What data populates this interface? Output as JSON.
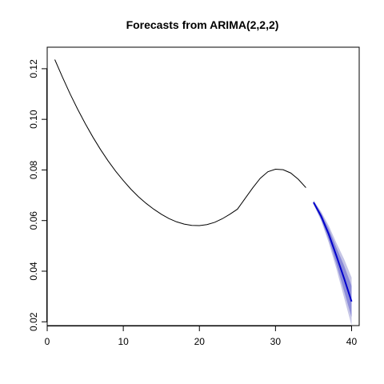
{
  "chart_data": {
    "type": "line",
    "title": "Forecasts from ARIMA(2,2,2)",
    "xlabel": "",
    "ylabel": "",
    "xlim": [
      0,
      41
    ],
    "ylim": [
      0.0185,
      0.1285
    ],
    "x_ticks": [
      0,
      10,
      20,
      30,
      40
    ],
    "x_tick_labels": [
      "0",
      "10",
      "20",
      "30",
      "40"
    ],
    "y_ticks": [
      0.02,
      0.04,
      0.06,
      0.08,
      0.1,
      0.12
    ],
    "y_tick_labels": [
      "0.02",
      "0.04",
      "0.06",
      "0.08",
      "0.10",
      "0.12"
    ],
    "grid": false,
    "legend": "none",
    "series": [
      {
        "role": "observed",
        "color": "#000000",
        "x": [
          1,
          2,
          3,
          4,
          5,
          6,
          7,
          8,
          9,
          10,
          11,
          12,
          13,
          14,
          15,
          16,
          17,
          18,
          19,
          20,
          21,
          22,
          23,
          24,
          25,
          26,
          27,
          28,
          29,
          30,
          31,
          32,
          33,
          34
        ],
        "y": [
          0.1236,
          0.1167,
          0.1101,
          0.104,
          0.0983,
          0.093,
          0.0881,
          0.0836,
          0.0795,
          0.0758,
          0.0724,
          0.0694,
          0.0668,
          0.0645,
          0.0625,
          0.0608,
          0.0595,
          0.0586,
          0.0581,
          0.058,
          0.0584,
          0.0593,
          0.0607,
          0.0625,
          0.0645,
          0.0687,
          0.0729,
          0.0767,
          0.0793,
          0.0803,
          0.0801,
          0.0788,
          0.0763,
          0.073
        ]
      },
      {
        "role": "forecast",
        "color": "#0000cc",
        "x": [
          35,
          36,
          37,
          38,
          39,
          40
        ],
        "y": [
          0.0672,
          0.0617,
          0.0546,
          0.0461,
          0.0373,
          0.028
        ],
        "lower80": [
          0.0667,
          0.0605,
          0.0524,
          0.0428,
          0.0323,
          0.0218
        ],
        "upper80": [
          0.0677,
          0.0629,
          0.0568,
          0.0494,
          0.0423,
          0.0342
        ],
        "lower95": [
          0.0664,
          0.0599,
          0.0512,
          0.041,
          0.0297,
          0.0185
        ],
        "upper95": [
          0.068,
          0.0635,
          0.058,
          0.0512,
          0.0449,
          0.0375
        ],
        "band80_color": "#8c8cd9",
        "band95_color": "#c6c6e6"
      }
    ]
  }
}
